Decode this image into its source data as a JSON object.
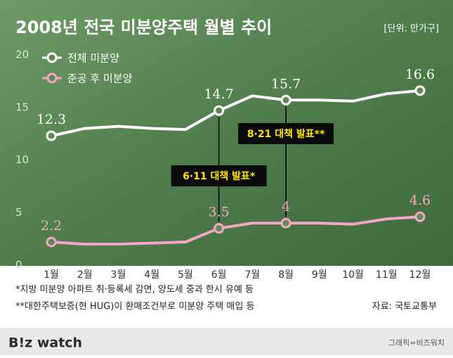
{
  "chart_data": {
    "type": "line",
    "title": "2008년 전국 미분양주택 월별 추이",
    "unit": "[단위: 만가구]",
    "categories": [
      "1월",
      "2월",
      "3월",
      "4월",
      "5월",
      "6월",
      "7월",
      "8월",
      "9월",
      "10월",
      "11월",
      "12월"
    ],
    "series": [
      {
        "name": "전체 미분양",
        "color": "#ffffff",
        "values": [
          12.3,
          13.0,
          13.2,
          13.0,
          12.9,
          14.7,
          16.1,
          15.7,
          15.7,
          15.6,
          16.3,
          16.6
        ],
        "labeled": [
          0,
          5,
          7,
          11
        ]
      },
      {
        "name": "준공 후 미분양",
        "color": "#f4a7c4",
        "values": [
          2.2,
          2.0,
          2.0,
          2.1,
          2.2,
          3.5,
          4.0,
          4.0,
          4.0,
          3.9,
          4.4,
          4.6
        ],
        "labeled": [
          0,
          5,
          7,
          11
        ]
      }
    ],
    "ylim": [
      0,
      20
    ],
    "yticks": [
      0,
      5,
      10,
      15,
      20
    ],
    "annotations": [
      {
        "text": "6·11 대책 발표*",
        "category_index": 5
      },
      {
        "text": "8·21 대책 발표**",
        "category_index": 7
      }
    ],
    "footnotes": [
      "*지방 미분양 아파트 취·등록세 감면, 양도세 중과 한시 유예 등",
      "**대한주택보증(현 HUG)이 환매조건부로 미분양 주택 매입 등"
    ],
    "source": "자료: 국토교통부",
    "logo": "B!z watch",
    "credit": "그래픽=비즈워치"
  }
}
